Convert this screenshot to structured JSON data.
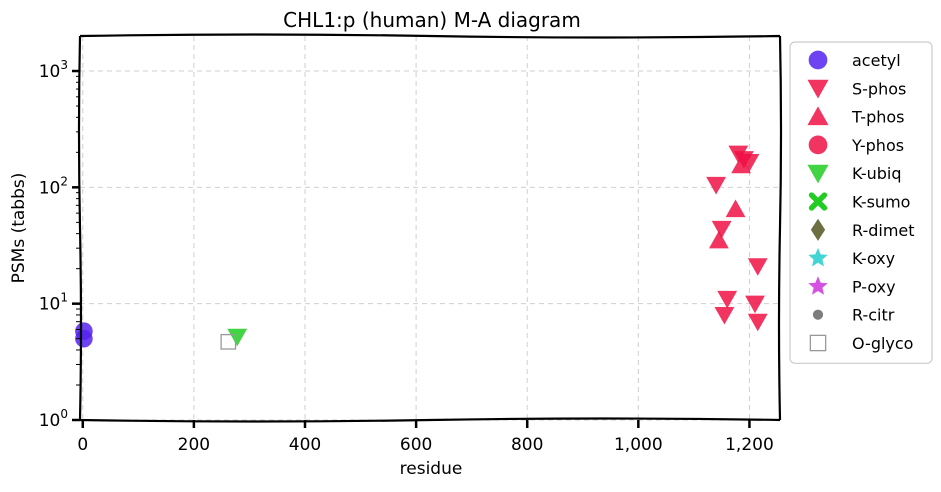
{
  "chart_data": {
    "type": "scatter",
    "title": "CHL1:p (human) M-A diagram",
    "xlabel": "residue",
    "ylabel": "PSMs (tabbs)",
    "xlim": [
      -5,
      1255
    ],
    "ylim": [
      1,
      2000
    ],
    "yscale": "log",
    "grid": true,
    "legend_position": "right outside",
    "x_ticks": [
      {
        "value": 0,
        "label": "0"
      },
      {
        "value": 200,
        "label": "200"
      },
      {
        "value": 400,
        "label": "400"
      },
      {
        "value": 600,
        "label": "600"
      },
      {
        "value": 800,
        "label": "800"
      },
      {
        "value": 1000,
        "label": "1,000"
      },
      {
        "value": 1200,
        "label": "1,200"
      }
    ],
    "y_ticks": [
      {
        "value": 1,
        "base": "10",
        "exp": "0"
      },
      {
        "value": 10,
        "base": "10",
        "exp": "1"
      },
      {
        "value": 100,
        "base": "10",
        "exp": "2"
      },
      {
        "value": 1000,
        "base": "10",
        "exp": "3"
      }
    ],
    "series": [
      {
        "name": "acetyl",
        "marker": "circle",
        "color": "#5522ee",
        "points": [
          [
            2,
            5.8
          ],
          [
            2,
            5.0
          ]
        ]
      },
      {
        "name": "S-phos",
        "marker": "triangle-down",
        "color": "#ee1144",
        "points": [
          [
            1140,
            105
          ],
          [
            1150,
            44
          ],
          [
            1155,
            8
          ],
          [
            1160,
            11
          ],
          [
            1180,
            195
          ],
          [
            1190,
            175
          ],
          [
            1200,
            165
          ],
          [
            1210,
            10
          ],
          [
            1215,
            7
          ],
          [
            1215,
            21
          ]
        ]
      },
      {
        "name": "T-phos",
        "marker": "triangle-up",
        "color": "#ee1144",
        "points": [
          [
            1145,
            35
          ],
          [
            1175,
            65
          ],
          [
            1185,
            155
          ]
        ]
      },
      {
        "name": "Y-phos",
        "marker": "circle",
        "color": "#ee1144",
        "points": []
      },
      {
        "name": "K-ubiq",
        "marker": "triangle-down",
        "color": "#22cc22",
        "points": [
          [
            278,
            5.2
          ]
        ]
      },
      {
        "name": "K-sumo",
        "marker": "x-cross",
        "color": "#22cc22",
        "points": []
      },
      {
        "name": "R-dimet",
        "marker": "diamond",
        "color": "#555522",
        "points": []
      },
      {
        "name": "K-oxy",
        "marker": "star",
        "color": "#22cccc",
        "points": []
      },
      {
        "name": "P-oxy",
        "marker": "star",
        "color": "#cc33dd",
        "points": []
      },
      {
        "name": "R-citr",
        "marker": "small-circle",
        "color": "#666666",
        "points": []
      },
      {
        "name": "O-glyco",
        "marker": "square-open",
        "color": "#999999",
        "points": [
          [
            262,
            4.7
          ]
        ]
      }
    ]
  }
}
